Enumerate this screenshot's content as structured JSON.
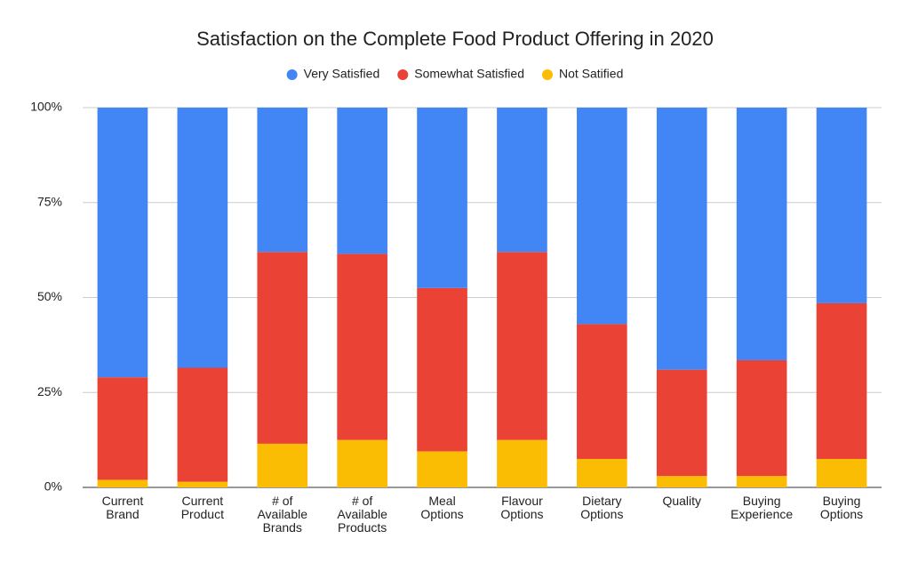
{
  "chart_data": {
    "type": "stacked_bar_percent",
    "title": "Satisfaction on the Complete Food Product Offering in 2020",
    "categories": [
      "Current Brand",
      "Current Product",
      "# of Available Brands",
      "# of Available Products",
      "Meal Options",
      "Flavour Options",
      "Dietary Options",
      "Quality",
      "Buying Experience",
      "Buying Options"
    ],
    "series": [
      {
        "name": "Very Satisfied",
        "color": "#4285f4",
        "values": [
          71,
          68.5,
          38,
          38.5,
          47.5,
          38,
          57,
          69,
          66.5,
          51.5
        ]
      },
      {
        "name": "Somewhat Satisfied",
        "color": "#ea4335",
        "values": [
          27,
          30,
          50.5,
          49,
          43,
          49.5,
          35.5,
          28,
          30.5,
          41
        ]
      },
      {
        "name": "Not Satified",
        "color": "#fbbc04",
        "values": [
          2,
          1.5,
          11.5,
          12.5,
          9.5,
          12.5,
          7.5,
          3,
          3,
          7.5
        ]
      }
    ],
    "ylim": [
      0,
      100
    ],
    "yticks": [
      {
        "value": 0,
        "label": "0%"
      },
      {
        "value": 25,
        "label": "25%"
      },
      {
        "value": 50,
        "label": "50%"
      },
      {
        "value": 75,
        "label": "75%"
      },
      {
        "value": 100,
        "label": "100%"
      }
    ],
    "grid": true,
    "legend": "top"
  }
}
